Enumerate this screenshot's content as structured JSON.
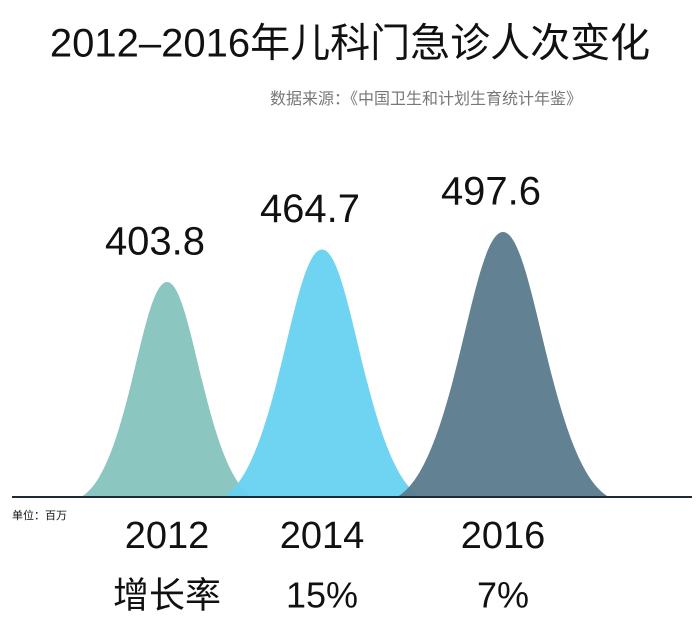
{
  "chart_data": {
    "type": "peak",
    "title": "2012–2016年儿科门急诊人次变化",
    "subtitle": "数据来源：《中国卫生和计划生育统计年鉴》",
    "unit": "单位：百万",
    "categories": [
      "2012",
      "2014",
      "2016"
    ],
    "values": [
      403.8,
      464.7,
      497.6
    ],
    "colors": [
      "#86c3bd",
      "#67d2f1",
      "#5a7a8d"
    ],
    "growth": {
      "label": "增长率",
      "values": [
        null,
        15,
        7
      ],
      "value_labels": [
        null,
        "15%",
        "7%"
      ]
    }
  }
}
